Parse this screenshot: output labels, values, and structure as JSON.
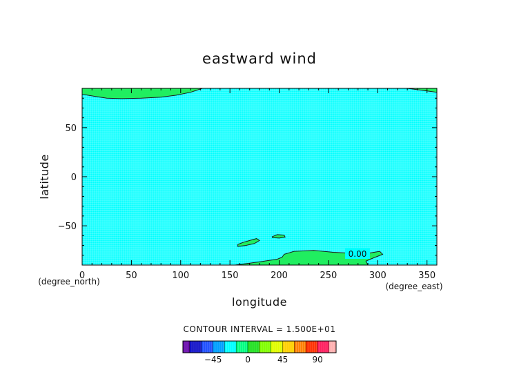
{
  "chart_data": {
    "type": "contour",
    "title": "eastward wind",
    "xlabel": "longitude",
    "ylabel": "latitude",
    "x_unit": "(degree_east)",
    "y_unit": "(degree_north)",
    "xlim": [
      0,
      360
    ],
    "ylim": [
      -90,
      90
    ],
    "x_ticks": [
      0,
      50,
      100,
      150,
      200,
      250,
      300,
      350
    ],
    "y_ticks": [
      -50,
      0,
      50
    ],
    "contour_interval_text": "CONTOUR INTERVAL = 1.500E+01",
    "contour_label": "0.00",
    "colorbar": {
      "tick_labels": [
        "-45",
        "0",
        "45",
        "90"
      ],
      "tick_values": [
        -45,
        0,
        45,
        90
      ],
      "levels": [
        -75,
        -60,
        -45,
        -30,
        -15,
        0,
        15,
        30,
        45,
        60,
        75,
        90,
        105
      ],
      "colors": [
        "#6a0dad",
        "#1010c8",
        "#2050ff",
        "#00a0ff",
        "#00ffff",
        "#00ff80",
        "#20e020",
        "#80ff00",
        "#e0ff00",
        "#ffd000",
        "#ff8000",
        "#ff3000",
        "#ff2060",
        "#ffb0b0"
      ]
    },
    "background_color": "#00ffff",
    "positive_region_color": "#20ee60",
    "regions": [
      {
        "points": [
          [
            0,
            90
          ],
          [
            0,
            84
          ],
          [
            12,
            82
          ],
          [
            25,
            80
          ],
          [
            40,
            79.5
          ],
          [
            60,
            80
          ],
          [
            80,
            81
          ],
          [
            95,
            83
          ],
          [
            110,
            86
          ],
          [
            122,
            90
          ]
        ]
      },
      {
        "points": [
          [
            330,
            90
          ],
          [
            345,
            88
          ],
          [
            360,
            86
          ],
          [
            360,
            90
          ]
        ]
      },
      {
        "points": [
          [
            158,
            -69
          ],
          [
            163,
            -67
          ],
          [
            170,
            -65
          ],
          [
            177,
            -63
          ],
          [
            180,
            -65
          ],
          [
            175,
            -68
          ],
          [
            166,
            -70
          ],
          [
            158,
            -71
          ]
        ]
      },
      {
        "points": [
          [
            193,
            -61
          ],
          [
            198,
            -59
          ],
          [
            205,
            -59.5
          ],
          [
            206,
            -61.5
          ],
          [
            200,
            -62.5
          ],
          [
            193,
            -62
          ]
        ]
      },
      {
        "points": [
          [
            155,
            -90
          ],
          [
            170,
            -88
          ],
          [
            185,
            -86
          ],
          [
            198,
            -84
          ],
          [
            203,
            -82
          ],
          [
            205,
            -79
          ],
          [
            215,
            -76
          ],
          [
            235,
            -75
          ],
          [
            255,
            -77
          ],
          [
            275,
            -78
          ],
          [
            290,
            -78
          ],
          [
            302,
            -76
          ],
          [
            305,
            -79
          ],
          [
            295,
            -83
          ],
          [
            288,
            -86
          ],
          [
            290,
            -90
          ]
        ]
      }
    ]
  }
}
